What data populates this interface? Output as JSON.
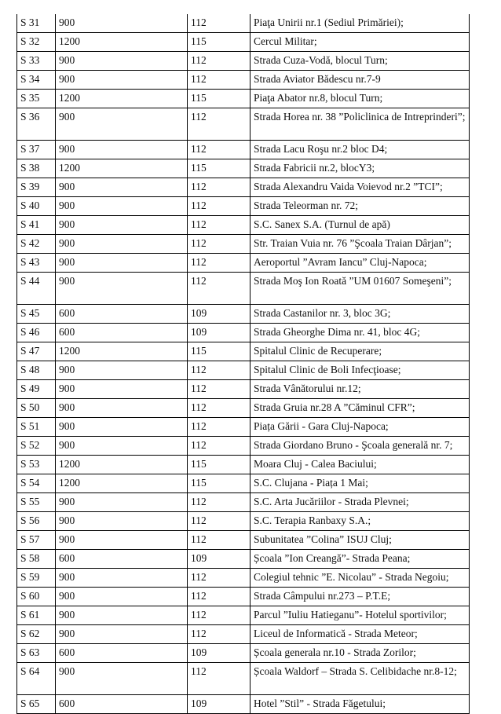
{
  "rows": [
    {
      "id": "S 31",
      "val": "900",
      "code": "112",
      "loc": "Piaţa Unirii nr.1 (Sediul Primăriei);"
    },
    {
      "id": "S 32",
      "val": "1200",
      "code": "115",
      "loc": "Cercul Militar;"
    },
    {
      "id": "S 33",
      "val": "900",
      "code": "112",
      "loc": "Strada  Cuza-Vodă, blocul Turn;"
    },
    {
      "id": "S 34",
      "val": "900",
      "code": "112",
      "loc": "Strada Aviator Bădescu nr.7-9"
    },
    {
      "id": "S 35",
      "val": "1200",
      "code": "115",
      "loc": "Piaţa Abator nr.8, blocul Turn;"
    },
    {
      "id": "S 36",
      "val": "900",
      "code": "112",
      "loc": "Strada Horea nr. 38 ”Policlinica de Intreprinderi”;",
      "tall": true
    },
    {
      "id": "S 37",
      "val": "900",
      "code": "112",
      "loc": "Strada Lacu Roşu nr.2  bloc D4;"
    },
    {
      "id": "S 38",
      "val": "1200",
      "code": "115",
      "loc": "Strada Fabricii nr.2,  blocY3;"
    },
    {
      "id": "S 39",
      "val": "900",
      "code": "112",
      "loc": "Strada  Alexandru Vaida Voievod nr.2  ”TCI”;"
    },
    {
      "id": "S 40",
      "val": "900",
      "code": "112",
      "loc": "Strada  Teleorman  nr. 72;"
    },
    {
      "id": "S 41",
      "val": "900",
      "code": "112",
      "loc": "S.C. Sanex S.A. (Turnul de  apă)"
    },
    {
      "id": "S 42",
      "val": "900",
      "code": "112",
      "loc": "Str. Traian Vuia nr. 76 ”Şcoala Traian Dârjan”;"
    },
    {
      "id": "S 43",
      "val": "900",
      "code": "112",
      "loc": "Aeroportul ”Avram Iancu” Cluj-Napoca;"
    },
    {
      "id": "S 44",
      "val": "900",
      "code": "112",
      "loc": "Strada Moş Ion Roată ”UM 01607 Someşeni”;",
      "tall": true
    },
    {
      "id": "S 45",
      "val": "600",
      "code": "109",
      "loc": "Strada  Castanilor nr. 3, bloc 3G;"
    },
    {
      "id": "S 46",
      "val": "600",
      "code": "109",
      "loc": "Strada Gheorghe Dima nr. 41, bloc 4G;"
    },
    {
      "id": "S 47",
      "val": "1200",
      "code": "115",
      "loc": "Spitalul Clinic de Recuperare;"
    },
    {
      "id": "S 48",
      "val": "900",
      "code": "112",
      "loc": "Spitalul Clinic de Boli Infecţioase;"
    },
    {
      "id": "S 49",
      "val": "900",
      "code": "112",
      "loc": "Strada Vânătorului nr.12;"
    },
    {
      "id": "S 50",
      "val": "900",
      "code": "112",
      "loc": "Strada Gruia nr.28 A ”Căminul  CFR”;"
    },
    {
      "id": "S 51",
      "val": "900",
      "code": "112",
      "loc": "Piața Gării - Gara Cluj-Napoca;"
    },
    {
      "id": "S 52",
      "val": "900",
      "code": "112",
      "loc": "Strada Giordano Bruno - Şcoala generală  nr. 7;"
    },
    {
      "id": "S 53",
      "val": "1200",
      "code": "115",
      "loc": "Moara Cluj - Calea Baciului;"
    },
    {
      "id": "S 54",
      "val": "1200",
      "code": "115",
      "loc": "S.C. Clujana -   Piața 1 Mai;"
    },
    {
      "id": "S 55",
      "val": "900",
      "code": "112",
      "loc": "S.C. Arta Jucăriilor - Strada Plevnei;"
    },
    {
      "id": "S 56",
      "val": "900",
      "code": "112",
      "loc": "S.C. Terapia Ranbaxy  S.A.;"
    },
    {
      "id": "S 57",
      "val": "900",
      "code": "112",
      "loc": "Subunitatea ”Colina” ISUJ Cluj;"
    },
    {
      "id": "S 58",
      "val": "600",
      "code": "109",
      "loc": "Școala ”Ion Creangă”-  Strada Peana;"
    },
    {
      "id": "S 59",
      "val": "900",
      "code": "112",
      "loc": "Colegiul tehnic ”E. Nicolau” - Strada Negoiu;"
    },
    {
      "id": "S 60",
      "val": "900",
      "code": "112",
      "loc": "Strada Câmpului nr.273 – P.T.E;"
    },
    {
      "id": "S 61",
      "val": "900",
      "code": "112",
      "loc": "Parcul ”Iuliu Hatieganu”-  Hotelul sportivilor;"
    },
    {
      "id": "S 62",
      "val": "900",
      "code": "112",
      "loc": "Liceul de Informatică -  Strada Meteor;"
    },
    {
      "id": "S 63",
      "val": "600",
      "code": "109",
      "loc": "Școala generala nr.10 - Strada Zorilor;"
    },
    {
      "id": "S 64",
      "val": "900",
      "code": "112",
      "loc": "Școala Waldorf – Strada S. Celibidache nr.8-12;",
      "tall": true
    },
    {
      "id": "S 65",
      "val": "600",
      "code": "109",
      "loc": "Hotel ”Stil” -  Strada Făgetului;"
    }
  ]
}
